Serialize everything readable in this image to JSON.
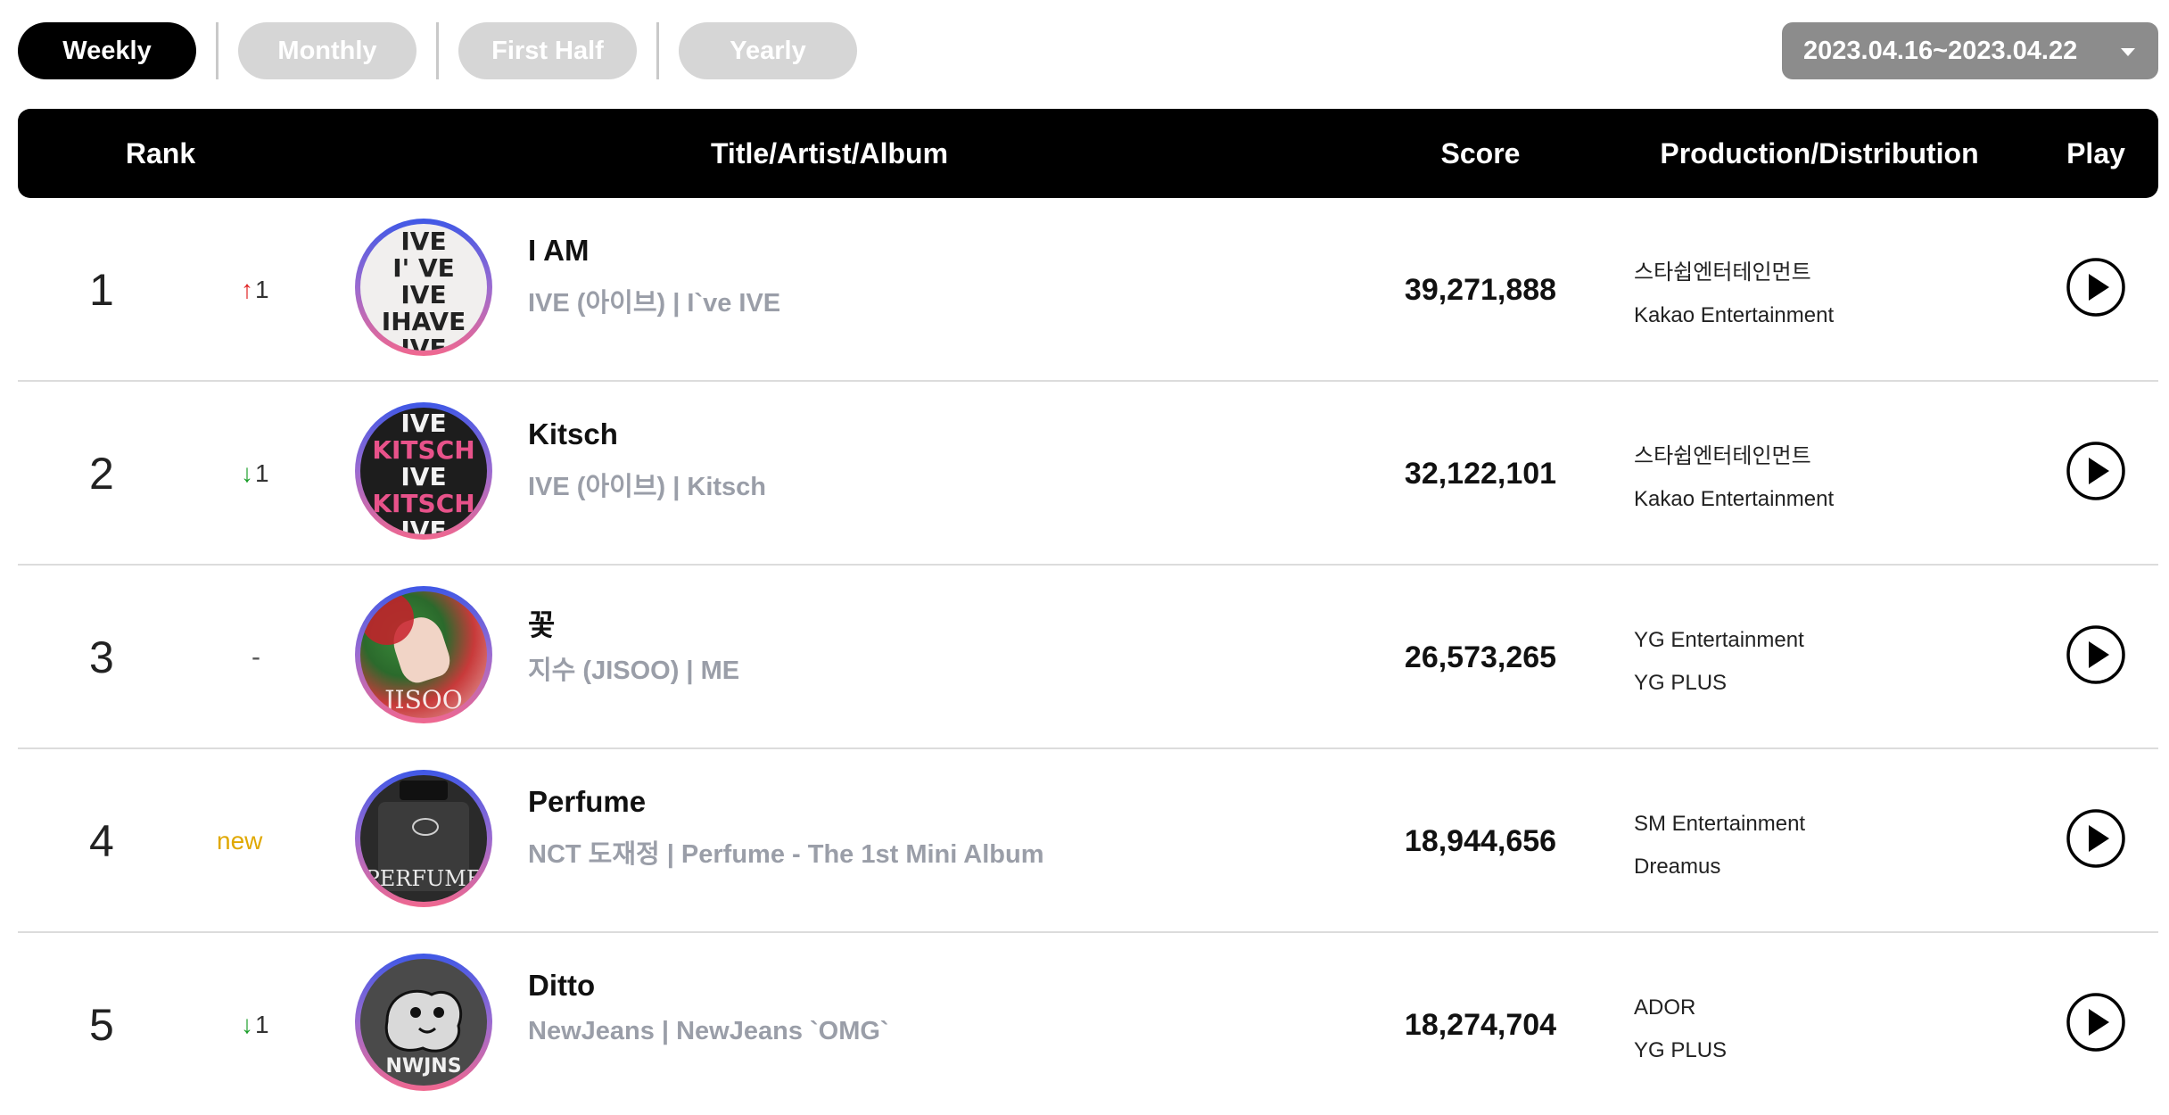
{
  "tabs": [
    {
      "label": "Weekly",
      "active": true
    },
    {
      "label": "Monthly",
      "active": false
    },
    {
      "label": "First Half",
      "active": false
    },
    {
      "label": "Yearly",
      "active": false
    }
  ],
  "date_range": {
    "value": "2023.04.16~2023.04.22",
    "icon": "caret-down-icon"
  },
  "table": {
    "headers": {
      "rank": "Rank",
      "title": "Title/Artist/Album",
      "score": "Score",
      "production": "Production/Distribution",
      "play": "Play"
    },
    "rows": [
      {
        "rank": "1",
        "change_arrow": "↑",
        "change_value": "1",
        "change_type": "up",
        "title": "I AM",
        "meta": "IVE (아이브) | I`ve IVE",
        "score": "39,271,888",
        "production": "스타쉽엔터테인먼트",
        "distribution": "Kakao Entertainment"
      },
      {
        "rank": "2",
        "change_arrow": "↓",
        "change_value": "1",
        "change_type": "down",
        "title": "Kitsch",
        "meta": "IVE (아이브) | Kitsch",
        "score": "32,122,101",
        "production": "스타쉽엔터테인먼트",
        "distribution": "Kakao Entertainment"
      },
      {
        "rank": "3",
        "change_arrow": "",
        "change_value": "-",
        "change_type": "same",
        "title": "꽃",
        "meta": "지수 (JISOO) | ME",
        "score": "26,573,265",
        "production": "YG Entertainment",
        "distribution": "YG PLUS"
      },
      {
        "rank": "4",
        "change_arrow": "",
        "change_value": "new",
        "change_type": "new",
        "title": "Perfume",
        "meta": "NCT 도재정 | Perfume - The 1st Mini Album",
        "score": "18,944,656",
        "production": "SM Entertainment",
        "distribution": "Dreamus"
      },
      {
        "rank": "5",
        "change_arrow": "↓",
        "change_value": "1",
        "change_type": "down",
        "title": "Ditto",
        "meta": "NewJeans | NewJeans `OMG`",
        "score": "18,274,704",
        "production": "ADOR",
        "distribution": "YG PLUS"
      }
    ]
  },
  "cover_art_text": {
    "ive_am": [
      "IVE",
      "I' VE",
      "IVE",
      "IHAVE",
      "IVE"
    ],
    "kitsch": [
      "IVE",
      "KITSCH",
      "IVE",
      "KITSCH",
      "IVE"
    ],
    "jisoo": "JISOO",
    "perfume": "PERFUME",
    "ditto": "NWJNS"
  },
  "colors": {
    "accent_header": "#000000",
    "tab_inactive": "#d6d6d6",
    "date_select_bg": "#8c8c8c",
    "meta_text": "#9a9ea8",
    "arrow_up": "#e02020",
    "arrow_down": "#1b9e2a",
    "new_badge": "#e0a800"
  }
}
